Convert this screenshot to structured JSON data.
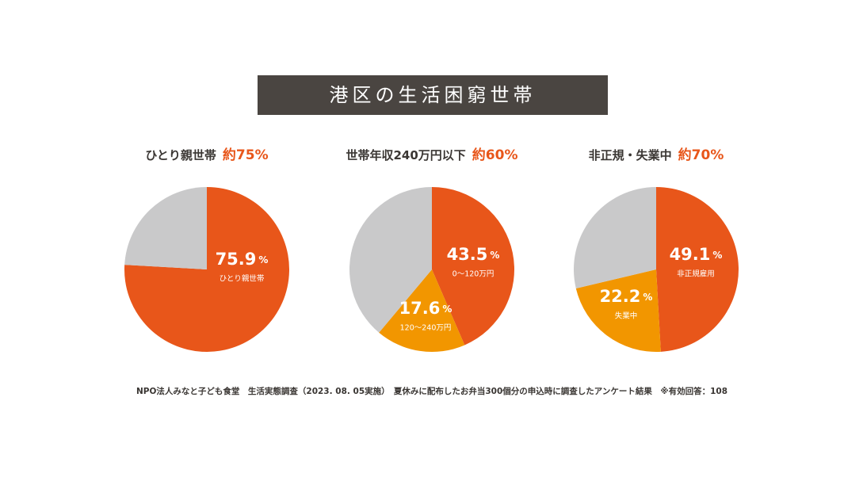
{
  "title": "港区の生活困窮世帯",
  "source": "NPO法人みなと子ども食堂　生活実態調査（2023. 08. 05実施）　夏休みに配布したお弁当300個分の申込時に調査したアンケート結果　※有効回答：108",
  "chart_data": [
    {
      "type": "pie",
      "title": "ひとり親世帯",
      "headline": "約75%",
      "categories": [
        "ひとり親世帯",
        null
      ],
      "values": [
        75.9,
        24.1
      ],
      "value_labels": [
        "75.9%",
        null
      ],
      "colors": [
        "#e8561a",
        "#c9c9ca"
      ]
    },
    {
      "type": "pie",
      "title": "世帯年収240万円以下",
      "headline": "約60%",
      "categories": [
        "0〜120万円",
        "120〜240万円",
        null
      ],
      "values": [
        43.5,
        17.6,
        38.9
      ],
      "value_labels": [
        "43.5%",
        "17.6%",
        null
      ],
      "colors": [
        "#e8561a",
        "#f29600",
        "#c9c9ca"
      ]
    },
    {
      "type": "pie",
      "title": "非正規・失業中",
      "headline": "約70%",
      "categories": [
        "非正規雇用",
        "失業中",
        null
      ],
      "values": [
        49.1,
        22.2,
        28.7
      ],
      "value_labels": [
        "49.1%",
        "22.2%",
        null
      ],
      "colors": [
        "#e8561a",
        "#f29600",
        "#c9c9ca"
      ]
    }
  ]
}
